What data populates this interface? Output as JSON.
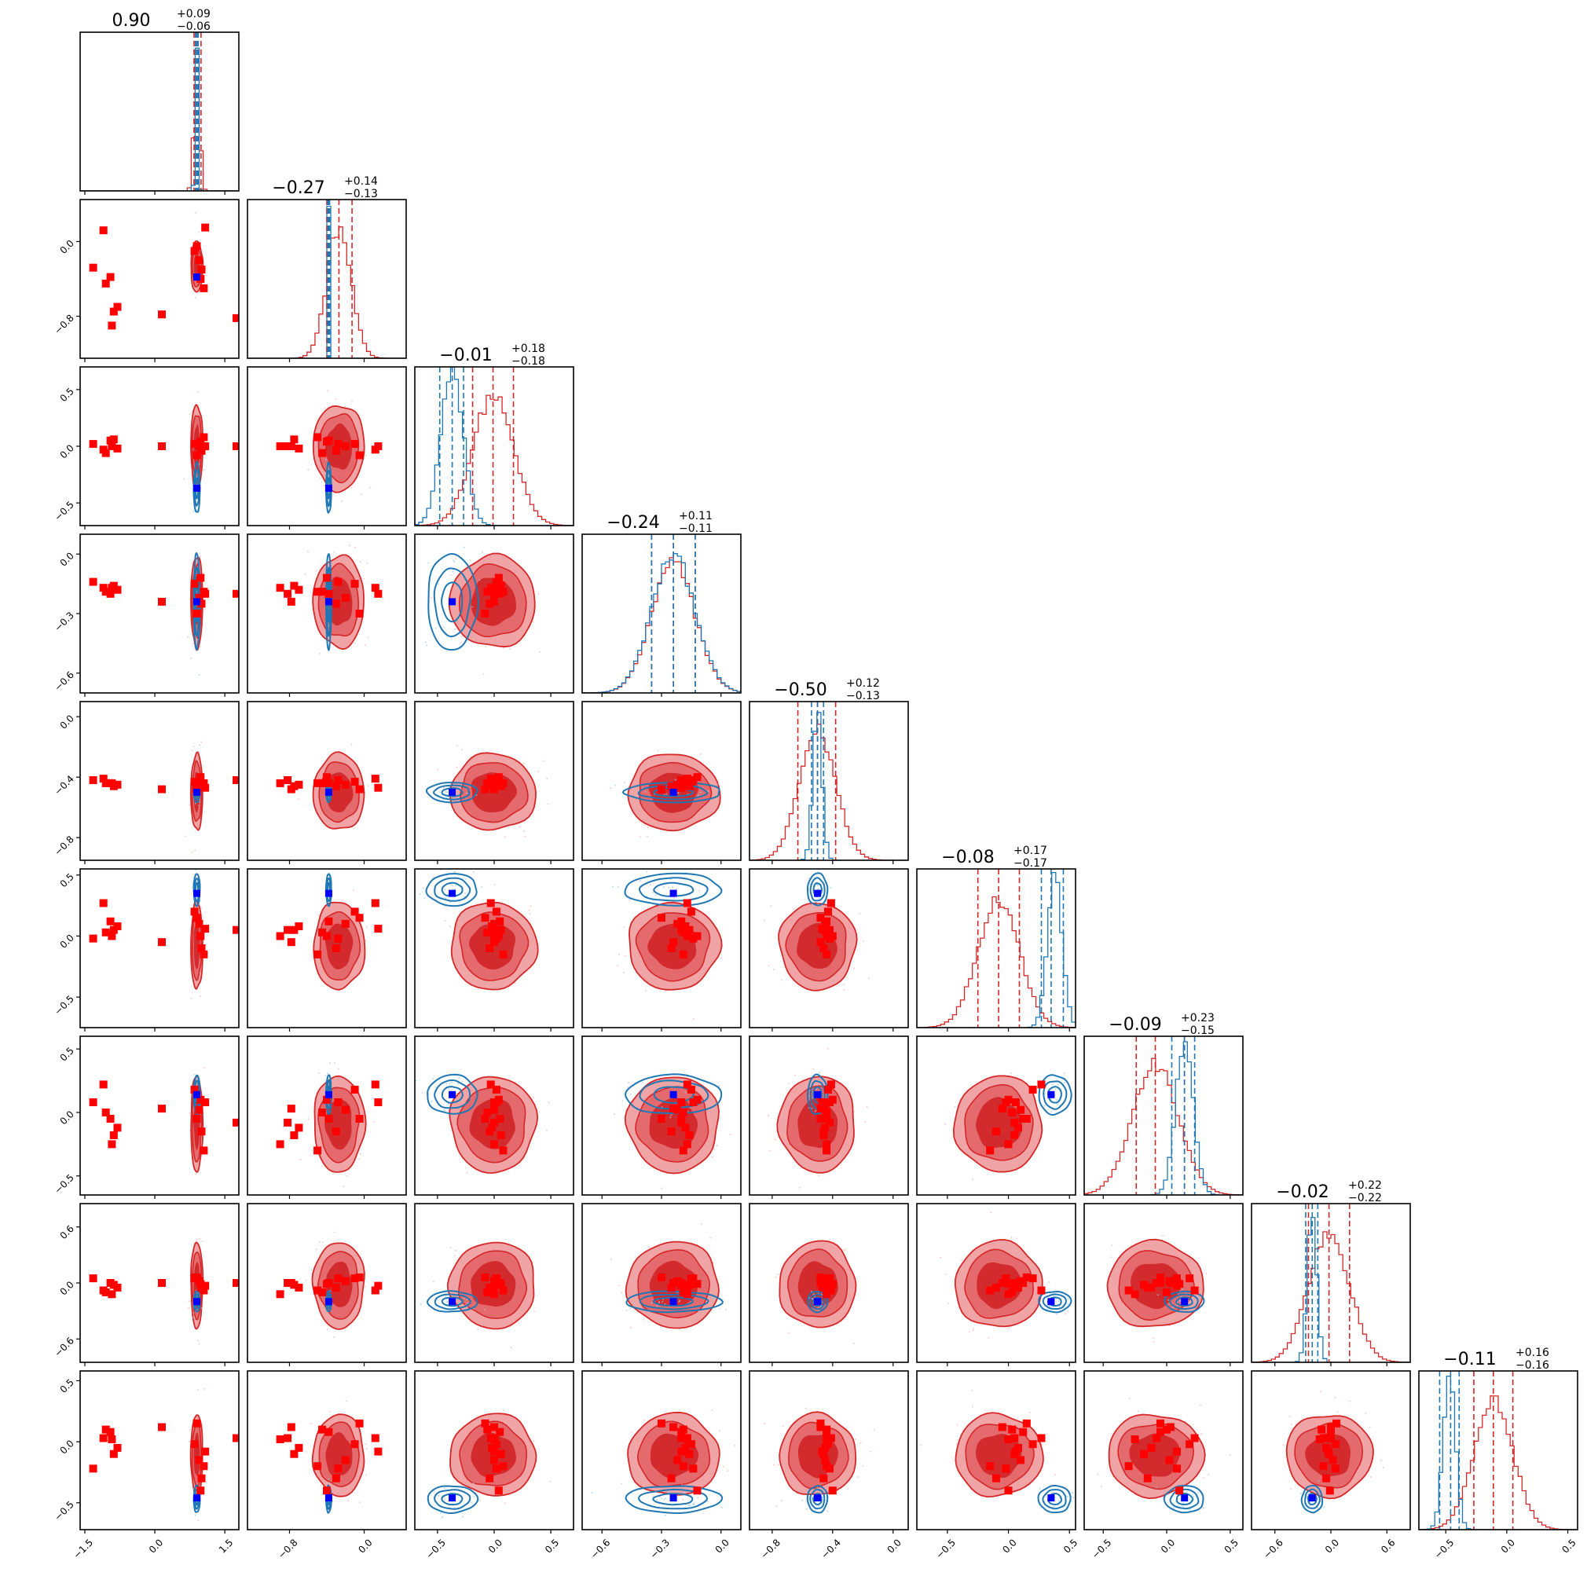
{
  "chart_data": {
    "type": "corner",
    "n_params": 9,
    "colors": {
      "red": "#d62728",
      "red_fill_outer": "#f0a4a6",
      "red_fill_mid": "#e46a6d",
      "red_fill_inner": "#d32a2e",
      "blue": "#1f77b4",
      "marker_red": "#ff0000",
      "marker_blue": "#0000ff"
    },
    "params": [
      {
        "index": 0,
        "title_value": "0.90",
        "title_plus": "+0.09",
        "title_minus": "−0.06",
        "range": [
          -1.6,
          1.8
        ],
        "ticks": [
          -1.5,
          0.0,
          1.5
        ],
        "tick_labels": [
          "−1.5",
          "0.0",
          "1.5"
        ],
        "red_quantiles": [
          0.84,
          0.9,
          0.99
        ],
        "blue_quantiles": [
          0.87,
          0.9,
          0.93
        ],
        "red_hist": {
          "mu": 0.9,
          "sigma": 0.06
        },
        "blue_hist": {
          "mu": 0.9,
          "sigma": 0.03
        },
        "truth": 0.9
      },
      {
        "index": 1,
        "title_value": "−0.27",
        "title_plus": "+0.14",
        "title_minus": "−0.13",
        "range": [
          -1.25,
          0.45
        ],
        "ticks": [
          -0.8,
          0.0
        ],
        "tick_labels": [
          "−0.8",
          "0.0"
        ],
        "red_quantiles": [
          -0.4,
          -0.27,
          -0.13
        ],
        "blue_quantiles": [
          -0.39,
          -0.38,
          -0.37
        ],
        "red_hist": {
          "mu": -0.27,
          "sigma": 0.13
        },
        "blue_hist": {
          "mu": -0.38,
          "sigma": 0.01
        },
        "truth": -0.38
      },
      {
        "index": 2,
        "title_value": "−0.01",
        "title_plus": "+0.18",
        "title_minus": "−0.18",
        "range": [
          -0.7,
          0.7
        ],
        "ticks": [
          -0.5,
          0.0,
          0.5
        ],
        "tick_labels": [
          "−0.5",
          "0.0",
          "0.5"
        ],
        "red_quantiles": [
          -0.19,
          -0.01,
          0.17
        ],
        "blue_quantiles": [
          -0.48,
          -0.37,
          -0.27
        ],
        "red_hist": {
          "mu": -0.01,
          "sigma": 0.18
        },
        "blue_hist": {
          "mu": -0.37,
          "sigma": 0.1
        },
        "truth": -0.37
      },
      {
        "index": 3,
        "title_value": "−0.24",
        "title_plus": "+0.11",
        "title_minus": "−0.11",
        "range": [
          -0.7,
          0.1
        ],
        "ticks": [
          -0.6,
          -0.3,
          0.0
        ],
        "tick_labels": [
          "−0.6",
          "−0.3",
          "0.0"
        ],
        "red_quantiles": [
          -0.35,
          -0.24,
          -0.13
        ],
        "blue_quantiles": [
          -0.35,
          -0.24,
          -0.13
        ],
        "red_hist": {
          "mu": -0.24,
          "sigma": 0.11
        },
        "blue_hist": {
          "mu": -0.24,
          "sigma": 0.11
        },
        "truth": -0.24
      },
      {
        "index": 4,
        "title_value": "−0.50",
        "title_plus": "+0.12",
        "title_minus": "−0.13",
        "range": [
          -0.95,
          0.1
        ],
        "ticks": [
          -0.8,
          -0.4,
          0.0
        ],
        "tick_labels": [
          "−0.8",
          "−0.4",
          "0.0"
        ],
        "red_quantiles": [
          -0.63,
          -0.5,
          -0.38
        ],
        "blue_quantiles": [
          -0.54,
          -0.5,
          -0.46
        ],
        "red_hist": {
          "mu": -0.5,
          "sigma": 0.12
        },
        "blue_hist": {
          "mu": -0.5,
          "sigma": 0.03
        },
        "truth": -0.5
      },
      {
        "index": 5,
        "title_value": "−0.08",
        "title_plus": "+0.17",
        "title_minus": "−0.17",
        "range": [
          -0.75,
          0.55
        ],
        "ticks": [
          -0.5,
          0.0,
          0.5
        ],
        "tick_labels": [
          "−0.5",
          "0.0",
          "0.5"
        ],
        "red_quantiles": [
          -0.25,
          -0.08,
          0.09
        ],
        "blue_quantiles": [
          0.27,
          0.35,
          0.45
        ],
        "red_hist": {
          "mu": -0.08,
          "sigma": 0.17
        },
        "blue_hist": {
          "mu": 0.38,
          "sigma": 0.06
        },
        "truth": 0.35
      },
      {
        "index": 6,
        "title_value": "−0.09",
        "title_plus": "+0.23",
        "title_minus": "−0.15",
        "range": [
          -0.65,
          0.6
        ],
        "ticks": [
          -0.5,
          0.0,
          0.5
        ],
        "tick_labels": [
          "−0.5",
          "0.0",
          "0.5"
        ],
        "red_quantiles": [
          -0.24,
          -0.09,
          0.14
        ],
        "blue_quantiles": [
          0.04,
          0.14,
          0.22
        ],
        "red_hist": {
          "mu": -0.09,
          "sigma": 0.18
        },
        "blue_hist": {
          "mu": 0.14,
          "sigma": 0.07
        },
        "truth": 0.14
      },
      {
        "index": 7,
        "title_value": "−0.02",
        "title_plus": "+0.22",
        "title_minus": "−0.22",
        "range": [
          -0.85,
          0.85
        ],
        "ticks": [
          -0.6,
          0.0,
          0.6
        ],
        "tick_labels": [
          "−0.6",
          "0.0",
          "0.6"
        ],
        "red_quantiles": [
          -0.24,
          -0.02,
          0.2
        ],
        "blue_quantiles": [
          -0.27,
          -0.2,
          -0.14
        ],
        "red_hist": {
          "mu": -0.02,
          "sigma": 0.22
        },
        "blue_hist": {
          "mu": -0.2,
          "sigma": 0.05
        },
        "truth": -0.2
      },
      {
        "index": 8,
        "title_value": "−0.11",
        "title_plus": "+0.16",
        "title_minus": "−0.16",
        "range": [
          -0.72,
          0.58
        ],
        "ticks": [
          -0.5,
          0.0,
          0.5
        ],
        "tick_labels": [
          "−0.5",
          "0.0",
          "0.5"
        ],
        "red_quantiles": [
          -0.27,
          -0.11,
          0.05
        ],
        "blue_quantiles": [
          -0.55,
          -0.46,
          -0.39
        ],
        "red_hist": {
          "mu": -0.11,
          "sigma": 0.16
        },
        "blue_hist": {
          "mu": -0.47,
          "sigma": 0.05
        },
        "truth": -0.46
      }
    ],
    "red_markers": [
      [
        -1.32,
        -0.28,
        0.02,
        -0.14,
        -0.42,
        -0.02,
        0.08,
        0.05,
        -0.22
      ],
      [
        -1.1,
        0.12,
        -0.03,
        -0.17,
        -0.41,
        0.27,
        0.22,
        -0.08,
        0.03
      ],
      [
        -0.95,
        -0.38,
        0.05,
        -0.2,
        -0.44,
        0.12,
        -0.05,
        0.0,
        0.08
      ],
      [
        -0.8,
        -0.7,
        -0.02,
        -0.18,
        -0.45,
        0.08,
        -0.12,
        -0.05,
        -0.05
      ],
      [
        -1.05,
        -0.45,
        -0.06,
        -0.19,
        -0.44,
        0.03,
        0.0,
        -0.1,
        0.1
      ],
      [
        -0.88,
        -0.75,
        0.06,
        -0.16,
        -0.46,
        0.05,
        -0.18,
        -0.02,
        -0.1
      ],
      [
        -0.92,
        -0.9,
        0.0,
        -0.17,
        -0.44,
        0.0,
        -0.25,
        -0.12,
        0.02
      ],
      [
        0.15,
        -0.78,
        0.0,
        -0.24,
        -0.48,
        -0.05,
        0.03,
        0.0,
        0.12
      ],
      [
        1.75,
        -0.82,
        0.0,
        -0.2,
        -0.42,
        0.05,
        -0.08,
        0.0,
        0.03
      ],
      [
        1.08,
        0.15,
        0.0,
        -0.2,
        -0.47,
        0.06,
        0.08,
        -0.03,
        -0.08
      ],
      [
        0.95,
        -0.2,
        0.0,
        -0.22,
        -0.45,
        0.1,
        0.02,
        0.02,
        -0.15
      ],
      [
        1.0,
        -0.3,
        -0.04,
        -0.25,
        -0.46,
        -0.1,
        -0.15,
        -0.05,
        -0.3
      ],
      [
        0.85,
        -0.1,
        0.02,
        -0.15,
        -0.43,
        0.2,
        0.18,
        0.05,
        -0.02
      ],
      [
        1.05,
        -0.5,
        0.08,
        -0.19,
        -0.44,
        -0.15,
        -0.3,
        -0.08,
        -0.2
      ],
      [
        0.9,
        -0.05,
        -0.08,
        -0.3,
        -0.48,
        0.15,
        -0.05,
        0.06,
        0.15
      ],
      [
        0.98,
        -0.4,
        0.04,
        -0.12,
        -0.4,
        0.0,
        0.1,
        -0.01,
        -0.4
      ]
    ]
  }
}
